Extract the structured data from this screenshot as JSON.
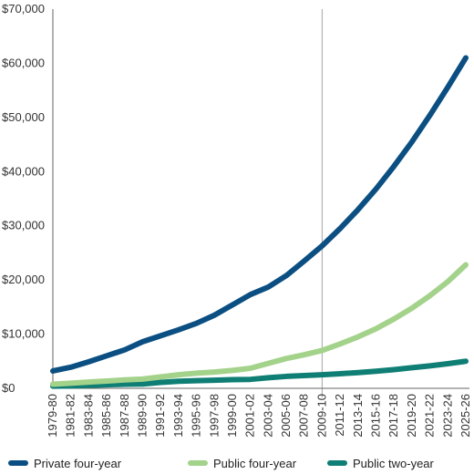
{
  "chart_data": {
    "type": "line",
    "title": "",
    "xlabel": "",
    "ylabel": "",
    "ylim": [
      0,
      70000
    ],
    "y_ticks": [
      0,
      10000,
      20000,
      30000,
      40000,
      50000,
      60000,
      70000
    ],
    "y_tick_labels": [
      "$0",
      "$10,000",
      "$20,000",
      "$30,000",
      "$40,000",
      "$50,000",
      "$60,000",
      "$70,000"
    ],
    "x_tick_labels": [
      "1979-80",
      "1981-82",
      "1983-84",
      "1985-86",
      "1987-88",
      "1989-90",
      "1991-92",
      "1993-94",
      "1995-96",
      "1997-98",
      "1999-00",
      "2001-02",
      "2003-04",
      "2005-06",
      "2007-08",
      "2009-10",
      "2011-12",
      "2013-14",
      "2015-16",
      "2017-18",
      "2019-20",
      "2021-22",
      "2023-24",
      "2025-26"
    ],
    "x_first": "1979-80",
    "x_last": "2025-26",
    "marker_x": "2009-10",
    "grid": false,
    "legend_position": "bottom",
    "colors": {
      "private_four_year": "#0b4f82",
      "public_four_year": "#a3d28a",
      "public_two_year": "#0f7e74",
      "marker": "#b3b3b3",
      "axis": "#666666"
    },
    "series": [
      {
        "name": "Private four-year",
        "color": "#0b4f82",
        "points": [
          [
            "1979-80",
            3200
          ],
          [
            "1981-82",
            3900
          ],
          [
            "1983-84",
            4900
          ],
          [
            "1985-86",
            6000
          ],
          [
            "1987-88",
            7100
          ],
          [
            "1989-90",
            8600
          ],
          [
            "1991-92",
            9700
          ],
          [
            "1993-94",
            10800
          ],
          [
            "1995-96",
            12000
          ],
          [
            "1997-98",
            13500
          ],
          [
            "1999-00",
            15400
          ],
          [
            "2001-02",
            17300
          ],
          [
            "2003-04",
            18700
          ],
          [
            "2005-06",
            20800
          ],
          [
            "2007-08",
            23500
          ],
          [
            "2009-10",
            26300
          ],
          [
            "2011-12",
            29500
          ],
          [
            "2013-14",
            33000
          ],
          [
            "2015-16",
            36800
          ],
          [
            "2017-18",
            41000
          ],
          [
            "2019-20",
            45500
          ],
          [
            "2021-22",
            50400
          ],
          [
            "2023-24",
            55600
          ],
          [
            "2025-26",
            61000
          ]
        ]
      },
      {
        "name": "Public four-year",
        "color": "#a3d28a",
        "points": [
          [
            "1979-80",
            750
          ],
          [
            "1981-82",
            950
          ],
          [
            "1983-84",
            1150
          ],
          [
            "1985-86",
            1350
          ],
          [
            "1987-88",
            1550
          ],
          [
            "1989-90",
            1700
          ],
          [
            "1991-92",
            2100
          ],
          [
            "1993-94",
            2500
          ],
          [
            "1995-96",
            2800
          ],
          [
            "1997-98",
            3000
          ],
          [
            "1999-00",
            3300
          ],
          [
            "2001-02",
            3700
          ],
          [
            "2003-04",
            4600
          ],
          [
            "2005-06",
            5500
          ],
          [
            "2007-08",
            6200
          ],
          [
            "2009-10",
            7000
          ],
          [
            "2011-12",
            8200
          ],
          [
            "2013-14",
            9500
          ],
          [
            "2015-16",
            11000
          ],
          [
            "2017-18",
            12800
          ],
          [
            "2019-20",
            14800
          ],
          [
            "2021-22",
            17100
          ],
          [
            "2023-24",
            19700
          ],
          [
            "2025-26",
            22800
          ]
        ]
      },
      {
        "name": "Public two-year",
        "color": "#0f7e74",
        "points": [
          [
            "1979-80",
            400
          ],
          [
            "1981-82",
            450
          ],
          [
            "1983-84",
            550
          ],
          [
            "1985-86",
            650
          ],
          [
            "1987-88",
            750
          ],
          [
            "1989-90",
            800
          ],
          [
            "1991-92",
            1100
          ],
          [
            "1993-94",
            1300
          ],
          [
            "1995-96",
            1400
          ],
          [
            "1997-98",
            1500
          ],
          [
            "1999-00",
            1600
          ],
          [
            "2001-02",
            1650
          ],
          [
            "2003-04",
            1950
          ],
          [
            "2005-06",
            2200
          ],
          [
            "2007-08",
            2350
          ],
          [
            "2009-10",
            2500
          ],
          [
            "2011-12",
            2700
          ],
          [
            "2013-14",
            2900
          ],
          [
            "2015-16",
            3150
          ],
          [
            "2017-18",
            3450
          ],
          [
            "2019-20",
            3800
          ],
          [
            "2021-22",
            4150
          ],
          [
            "2023-24",
            4550
          ],
          [
            "2025-26",
            5000
          ]
        ]
      }
    ]
  }
}
